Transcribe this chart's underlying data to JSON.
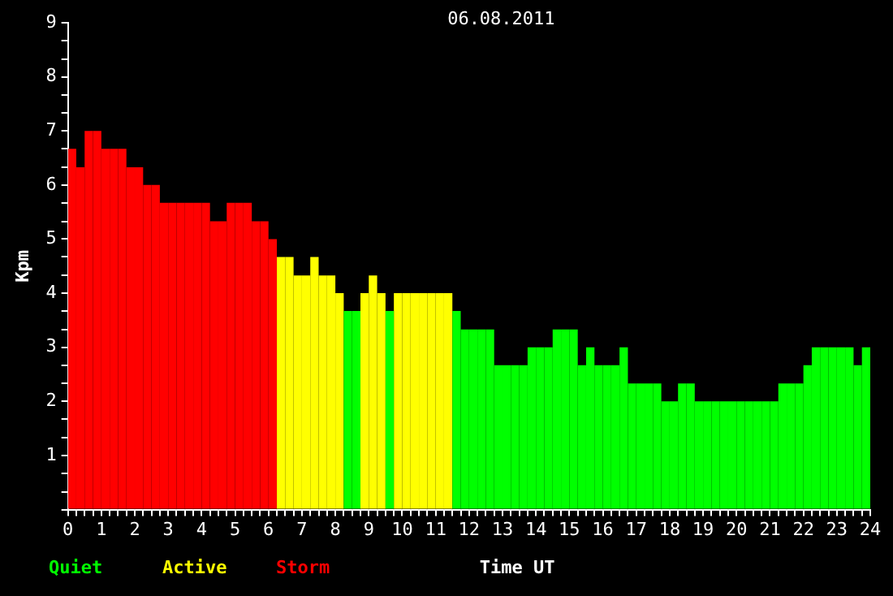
{
  "chart_data": {
    "type": "histogram",
    "title": "06.08.2011",
    "xlabel": "Time UT",
    "ylabel": "Kpm",
    "bins": [
      0,
      0.25,
      0.5,
      0.75,
      1,
      1.25,
      1.5,
      1.75,
      2,
      2.25,
      2.5,
      2.75,
      3,
      3.25,
      3.5,
      3.75,
      4,
      4.25,
      4.5,
      4.75,
      5,
      5.25,
      5.5,
      5.75,
      6,
      6.25,
      6.5,
      6.75,
      7,
      7.25,
      7.5,
      7.75,
      8,
      8.25,
      8.5,
      8.75,
      9,
      9.25,
      9.5,
      9.75,
      10,
      10.25,
      10.5,
      10.75,
      11,
      11.25,
      11.5,
      11.75,
      12,
      12.25,
      12.5,
      12.75,
      13,
      13.25,
      13.5,
      13.75,
      14,
      14.25,
      14.5,
      14.75,
      15,
      15.25,
      15.5,
      15.75,
      16,
      16.25,
      16.5,
      16.75,
      17,
      17.25,
      17.5,
      17.75,
      18,
      18.25,
      18.5,
      18.75,
      19,
      19.25,
      19.5,
      19.75,
      20,
      20.25,
      20.5,
      20.75,
      21,
      21.25,
      21.5,
      21.75,
      22,
      22.25,
      22.5,
      22.75,
      23,
      23.25,
      23.5,
      23.75,
      24
    ],
    "series": [
      {
        "name": "Quiet",
        "color": "#00ff00",
        "values": [
          null,
          null,
          null,
          null,
          null,
          null,
          null,
          null,
          null,
          null,
          null,
          null,
          null,
          null,
          null,
          null,
          null,
          null,
          null,
          null,
          null,
          null,
          null,
          null,
          null,
          null,
          null,
          null,
          null,
          null,
          null,
          null,
          null,
          3.67,
          3.67,
          null,
          null,
          null,
          3.67,
          null,
          null,
          null,
          null,
          null,
          null,
          null,
          3.67,
          3.33,
          3.33,
          3.33,
          3.33,
          2.67,
          2.67,
          2.67,
          2.67,
          3,
          3,
          3,
          3.33,
          3.33,
          3.33,
          2.67,
          3,
          2.67,
          2.67,
          2.67,
          3,
          2.33,
          2.33,
          2.33,
          2.33,
          2,
          2,
          2.33,
          2.33,
          2,
          2,
          2,
          2,
          2,
          2,
          2,
          2,
          2,
          2,
          2.33,
          2.33,
          2.33,
          2.67,
          3,
          3,
          3,
          3,
          3,
          2.67,
          3
        ]
      },
      {
        "name": "Active",
        "color": "#ffff00",
        "values": [
          null,
          null,
          null,
          null,
          null,
          null,
          null,
          null,
          null,
          null,
          null,
          null,
          null,
          null,
          null,
          null,
          null,
          null,
          null,
          null,
          null,
          null,
          null,
          null,
          null,
          4.67,
          4.67,
          4.33,
          4.33,
          4.67,
          4.33,
          4.33,
          4,
          null,
          null,
          4,
          4.33,
          4,
          null,
          4,
          4,
          4,
          4,
          4,
          4,
          4,
          null,
          null,
          null,
          null,
          null,
          null,
          null,
          null,
          null,
          null,
          null,
          null,
          null,
          null,
          null,
          null,
          null,
          null,
          null,
          null,
          null,
          null,
          null,
          null,
          null,
          null,
          null,
          null,
          null,
          null,
          null,
          null,
          null,
          null,
          null,
          null,
          null,
          null,
          null,
          null,
          null,
          null,
          null,
          null,
          null,
          null,
          null,
          null,
          null,
          null
        ]
      },
      {
        "name": "Storm",
        "color": "#ff0000",
        "values": [
          6.67,
          6.33,
          7,
          7,
          6.67,
          6.67,
          6.67,
          6.33,
          6.33,
          6,
          6,
          5.67,
          5.67,
          5.67,
          5.67,
          5.67,
          5.67,
          5.33,
          5.33,
          5.67,
          5.67,
          5.67,
          5.33,
          5.33,
          5,
          null,
          null,
          null,
          null,
          null,
          null,
          null,
          null,
          null,
          null,
          null,
          null,
          null,
          null,
          null,
          null,
          null,
          null,
          null,
          null,
          null,
          null,
          null,
          null,
          null,
          null,
          null,
          null,
          null,
          null,
          null,
          null,
          null,
          null,
          null,
          null,
          null,
          null,
          null,
          null,
          null,
          null,
          null,
          null,
          null,
          null,
          null,
          null,
          null,
          null,
          null,
          null,
          null,
          null,
          null,
          null,
          null,
          null,
          null,
          null,
          null,
          null,
          null,
          null,
          null,
          null,
          null,
          null,
          null,
          null,
          null
        ]
      }
    ],
    "xlim": [
      0,
      24
    ],
    "xticks": [
      0,
      {
        "value": 0.25,
        "label": null
      },
      {
        "value": 0.5,
        "label": null
      },
      {
        "value": 0.75,
        "label": null
      },
      1,
      {
        "value": 1.25,
        "label": null
      },
      {
        "value": 1.5,
        "label": null
      },
      {
        "value": 1.75,
        "label": null
      },
      2,
      {
        "value": 2.25,
        "label": null
      },
      {
        "value": 2.5,
        "label": null
      },
      {
        "value": 2.75,
        "label": null
      },
      3,
      {
        "value": 3.25,
        "label": null
      },
      {
        "value": 3.5,
        "label": null
      },
      {
        "value": 3.75,
        "label": null
      },
      4,
      {
        "value": 4.25,
        "label": null
      },
      {
        "value": 4.5,
        "label": null
      },
      {
        "value": 4.75,
        "label": null
      },
      5,
      {
        "value": 5.25,
        "label": null
      },
      {
        "value": 5.5,
        "label": null
      },
      {
        "value": 5.75,
        "label": null
      },
      6,
      {
        "value": 6.25,
        "label": null
      },
      {
        "value": 6.5,
        "label": null
      },
      {
        "value": 6.75,
        "label": null
      },
      7,
      {
        "value": 7.25,
        "label": null
      },
      {
        "value": 7.5,
        "label": null
      },
      {
        "value": 7.75,
        "label": null
      },
      8,
      {
        "value": 8.25,
        "label": null
      },
      {
        "value": 8.5,
        "label": null
      },
      {
        "value": 8.75,
        "label": null
      },
      9,
      {
        "value": 9.25,
        "label": null
      },
      {
        "value": 9.5,
        "label": null
      },
      {
        "value": 9.75,
        "label": null
      },
      10,
      {
        "value": 10.25,
        "label": null
      },
      {
        "value": 10.5,
        "label": null
      },
      {
        "value": 10.75,
        "label": null
      },
      11,
      {
        "value": 11.25,
        "label": null
      },
      {
        "value": 11.5,
        "label": null
      },
      {
        "value": 11.75,
        "label": null
      },
      12,
      {
        "value": 12.25,
        "label": null
      },
      {
        "value": 12.5,
        "label": null
      },
      {
        "value": 12.75,
        "label": null
      },
      13,
      {
        "value": 13.25,
        "label": null
      },
      {
        "value": 13.5,
        "label": null
      },
      {
        "value": 13.75,
        "label": null
      },
      14,
      {
        "value": 14.25,
        "label": null
      },
      {
        "value": 14.5,
        "label": null
      },
      {
        "value": 14.75,
        "label": null
      },
      15,
      {
        "value": 15.25,
        "label": null
      },
      {
        "value": 15.5,
        "label": null
      },
      {
        "value": 15.75,
        "label": null
      },
      16,
      {
        "value": 16.25,
        "label": null
      },
      {
        "value": 16.5,
        "label": null
      },
      {
        "value": 16.75,
        "label": null
      },
      17,
      {
        "value": 17.25,
        "label": null
      },
      {
        "value": 17.5,
        "label": null
      },
      {
        "value": 17.75,
        "label": null
      },
      18,
      {
        "value": 18.25,
        "label": null
      },
      {
        "value": 18.5,
        "label": null
      },
      {
        "value": 18.75,
        "label": null
      },
      19,
      {
        "value": 19.25,
        "label": null
      },
      {
        "value": 19.5,
        "label": null
      },
      {
        "value": 19.75,
        "label": null
      },
      20,
      {
        "value": 20.25,
        "label": null
      },
      {
        "value": 20.5,
        "label": null
      },
      {
        "value": 20.75,
        "label": null
      },
      21,
      {
        "value": 21.25,
        "label": null
      },
      {
        "value": 21.5,
        "label": null
      },
      {
        "value": 21.75,
        "label": null
      },
      22,
      {
        "value": 22.25,
        "label": null
      },
      {
        "value": 22.5,
        "label": null
      },
      {
        "value": 22.75,
        "label": null
      },
      23,
      {
        "value": 23.25,
        "label": null
      },
      {
        "value": 23.5,
        "label": null
      },
      {
        "value": 23.75,
        "label": null
      },
      24
    ],
    "ylim": [
      0,
      9
    ],
    "yticks": [
      {
        "value": 0,
        "label": null
      },
      {
        "value": 0.33,
        "label": null
      },
      {
        "value": 0.67,
        "label": null
      },
      1,
      {
        "value": 1.33,
        "label": null
      },
      {
        "value": 1.67,
        "label": null
      },
      2,
      {
        "value": 2.33,
        "label": null
      },
      {
        "value": 2.67,
        "label": null
      },
      3,
      {
        "value": 3.33,
        "label": null
      },
      {
        "value": 3.67,
        "label": null
      },
      4,
      {
        "value": 4.33,
        "label": null
      },
      {
        "value": 4.67,
        "label": null
      },
      5,
      {
        "value": 5.33,
        "label": null
      },
      {
        "value": 5.67,
        "label": null
      },
      6,
      {
        "value": 6.33,
        "label": null
      },
      {
        "value": 6.67,
        "label": null
      },
      7,
      {
        "value": 7.33,
        "label": null
      },
      {
        "value": 7.67,
        "label": null
      },
      8,
      {
        "value": 8.33,
        "label": null
      },
      {
        "value": 8.67,
        "label": null
      },
      9
    ],
    "grid": false,
    "legend": "bottom left"
  }
}
